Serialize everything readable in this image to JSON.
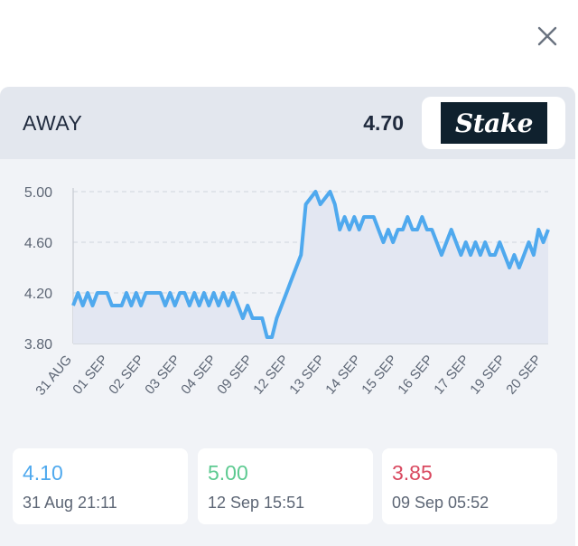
{
  "close_icon": "close-icon",
  "header": {
    "side_label": "AWAY",
    "odds": "4.70",
    "bookmaker": "Stake"
  },
  "colors": {
    "line": "#4fa9ee",
    "area": "#e3e7f2",
    "grid": "#d0d4dc",
    "axis": "#c6cad2",
    "tick_text": "#5d6675",
    "open": "#4fa9ee",
    "high": "#5dca91",
    "low": "#d9485f"
  },
  "chart_data": {
    "type": "line",
    "title": "",
    "xlabel": "",
    "ylabel": "",
    "ylim": [
      3.8,
      5.0
    ],
    "yticks": [
      "5.00",
      "4.60",
      "4.20",
      "3.80"
    ],
    "x_tick_labels": [
      "31 AUG",
      "01 SEP",
      "02 SEP",
      "03 SEP",
      "04 SEP",
      "09 SEP",
      "12 SEP",
      "13 SEP",
      "14 SEP",
      "15 SEP",
      "16 SEP",
      "17 SEP",
      "19 SEP",
      "20 SEP"
    ],
    "grid": true,
    "series": [
      {
        "values": [
          4.1,
          4.2,
          4.1,
          4.2,
          4.1,
          4.2,
          4.2,
          4.2,
          4.1,
          4.1,
          4.1,
          4.2,
          4.1,
          4.2,
          4.1,
          4.2,
          4.2,
          4.2,
          4.2,
          4.1,
          4.2,
          4.1,
          4.2,
          4.2,
          4.1,
          4.2,
          4.1,
          4.2,
          4.1,
          4.2,
          4.1,
          4.2,
          4.1,
          4.2,
          4.1,
          4.0,
          4.1,
          4.0,
          4.0,
          4.0,
          3.85,
          3.85,
          4.0,
          4.1,
          4.2,
          4.3,
          4.4,
          4.5,
          4.9,
          4.95,
          5.0,
          4.9,
          4.95,
          5.0,
          4.9,
          4.7,
          4.8,
          4.7,
          4.8,
          4.7,
          4.8,
          4.8,
          4.8,
          4.7,
          4.6,
          4.7,
          4.6,
          4.7,
          4.7,
          4.8,
          4.7,
          4.7,
          4.8,
          4.7,
          4.7,
          4.6,
          4.5,
          4.6,
          4.7,
          4.6,
          4.5,
          4.6,
          4.5,
          4.6,
          4.5,
          4.6,
          4.5,
          4.5,
          4.6,
          4.5,
          4.4,
          4.5,
          4.4,
          4.5,
          4.6,
          4.5,
          4.7,
          4.6,
          4.7
        ]
      }
    ]
  },
  "stats": [
    {
      "value": "4.10",
      "time": "31 Aug 21:11",
      "color_key": "open"
    },
    {
      "value": "5.00",
      "time": "12 Sep 15:51",
      "color_key": "high"
    },
    {
      "value": "3.85",
      "time": "09 Sep 05:52",
      "color_key": "low"
    }
  ]
}
